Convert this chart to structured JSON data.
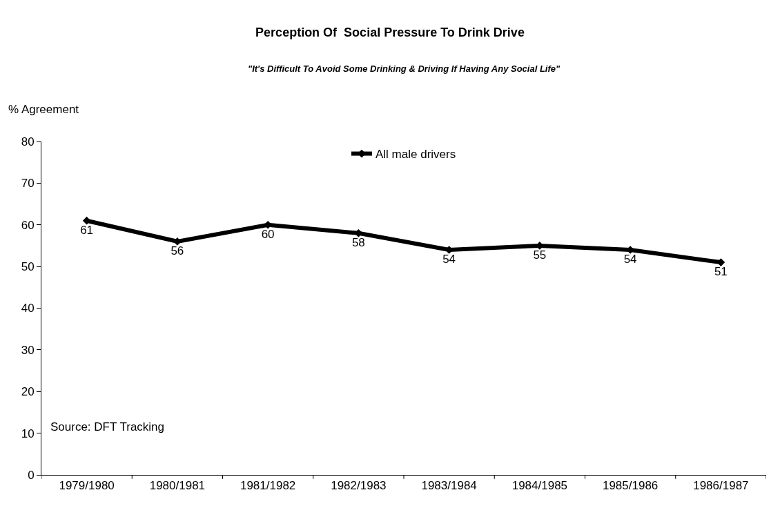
{
  "chart_data": {
    "type": "line",
    "title": "Perception Of  Social Pressure To Drink Drive",
    "subtitle": "\"It's Difficult To Avoid Some Drinking & Driving If Having Any Social Life\"",
    "ylabel": "% Agreement",
    "annotations": [
      "Source: DFT Tracking"
    ],
    "categories": [
      "1979/1980",
      "1980/1981",
      "1981/1982",
      "1982/1983",
      "1983/1984",
      "1984/1985",
      "1985/1986",
      "1986/1987"
    ],
    "series": [
      {
        "name": "All male drivers",
        "color": "#000000",
        "values": [
          61,
          56,
          60,
          58,
          54,
          55,
          54,
          51
        ]
      }
    ],
    "ylim": [
      0,
      80
    ],
    "yticks": [
      0,
      10,
      20,
      30,
      40,
      50,
      60,
      70,
      80
    ],
    "grid": false,
    "legend": "top",
    "marker": "diamond",
    "line_style": "solid",
    "data_labels": true
  }
}
